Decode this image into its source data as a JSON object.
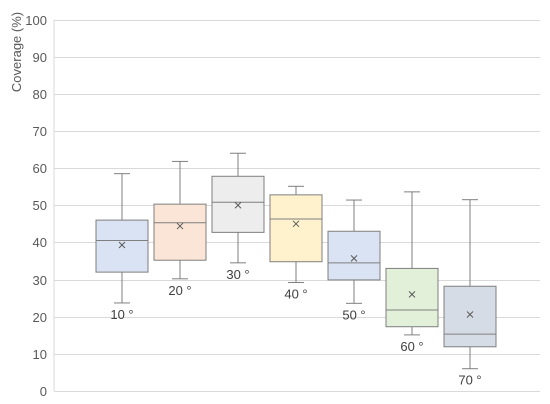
{
  "chart_data": {
    "type": "box",
    "title": "",
    "xlabel": "",
    "ylabel": "Coverage (%)",
    "ylim": [
      0,
      100
    ],
    "yticks": [
      0,
      10,
      20,
      30,
      40,
      50,
      60,
      70,
      80,
      90,
      100
    ],
    "grid": true,
    "categories": [
      "10 °",
      "20 °",
      "30 °",
      "40 °",
      "50 °",
      "60 °",
      "70 °"
    ],
    "boxes": [
      {
        "label": "10 °",
        "min": 23.7,
        "q1": 32.0,
        "median": 40.5,
        "q3": 46.0,
        "max": 58.5,
        "mean": 39.3,
        "color": "#dae3f3"
      },
      {
        "label": "20 °",
        "min": 30.2,
        "q1": 35.2,
        "median": 45.3,
        "q3": 50.3,
        "max": 61.8,
        "mean": 44.4,
        "color": "#fbe5d6"
      },
      {
        "label": "30 °",
        "min": 34.5,
        "q1": 42.7,
        "median": 50.8,
        "q3": 57.8,
        "max": 64.0,
        "mean": 50.0,
        "color": "#ededed"
      },
      {
        "label": "40 °",
        "min": 29.2,
        "q1": 34.8,
        "median": 46.3,
        "q3": 52.8,
        "max": 55.1,
        "mean": 45.0,
        "color": "#fff2cc"
      },
      {
        "label": "50 °",
        "min": 23.6,
        "q1": 29.9,
        "median": 34.5,
        "q3": 43.0,
        "max": 51.4,
        "mean": 35.7,
        "color": "#dae3f3"
      },
      {
        "label": "60 °",
        "min": 15.1,
        "q1": 17.3,
        "median": 21.8,
        "q3": 33.0,
        "max": 53.6,
        "mean": 26.0,
        "color": "#e2f0d9"
      },
      {
        "label": "70 °",
        "min": 6.0,
        "q1": 11.9,
        "median": 15.3,
        "q3": 28.2,
        "max": 51.5,
        "mean": 20.6,
        "color": "#d6dce5"
      }
    ]
  },
  "colors": {
    "grid": "#d9d9d9",
    "box_stroke": "#7f7f7f",
    "text": "#595959"
  }
}
